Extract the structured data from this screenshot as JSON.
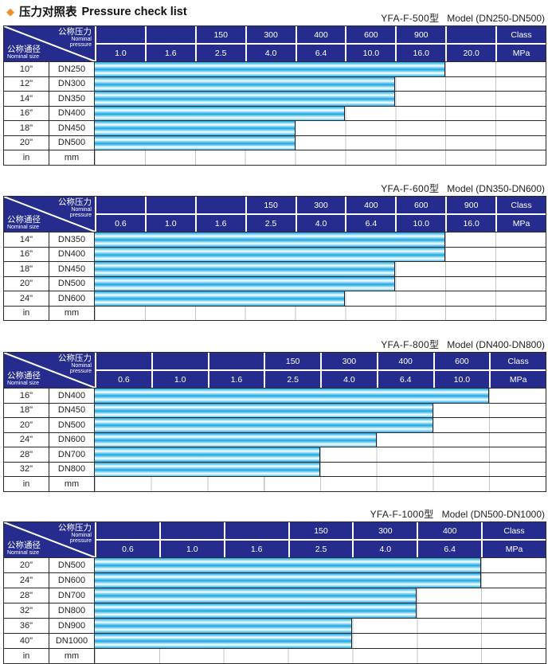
{
  "page": {
    "title_zh": "压力对照表",
    "title_en": "Pressure check list",
    "diamond_icon": "◆"
  },
  "corner": {
    "pressure_zh": "公称压力",
    "pressure_en_line1": "Nominal",
    "pressure_en_line2": "pressure",
    "size_zh": "公称通径",
    "size_en": "Nominal size"
  },
  "units": {
    "class_label": "Class",
    "mpa_label": "MPa",
    "inch_label": "in",
    "mm_label": "mm"
  },
  "colors": {
    "header_bg": "#262c8d",
    "bar_cyan": "#1ea7e0",
    "bar_highlight": "#ffffff",
    "diamond_orange": "#ef8f2a",
    "border_dark": "#2b2b2b"
  },
  "tables": [
    {
      "model": "YFA-F-500型",
      "model_range": "Model (DN250-DN500)",
      "class_row": [
        "",
        "",
        "150",
        "300",
        "400",
        "600",
        "900",
        ""
      ],
      "mpa_row": [
        "1.0",
        "1.6",
        "2.5",
        "4.0",
        "6.4",
        "10.0",
        "16.0",
        "20.0"
      ],
      "rows": [
        {
          "inch": "10\"",
          "dn": "DN250",
          "bar_span": 7,
          "max_mpa": "16.0"
        },
        {
          "inch": "12\"",
          "dn": "DN300",
          "bar_span": 6,
          "max_mpa": "10.0"
        },
        {
          "inch": "14\"",
          "dn": "DN350",
          "bar_span": 6,
          "max_mpa": "10.0"
        },
        {
          "inch": "16\"",
          "dn": "DN400",
          "bar_span": 5,
          "max_mpa": "6.4"
        },
        {
          "inch": "18\"",
          "dn": "DN450",
          "bar_span": 4,
          "max_mpa": "4.0"
        },
        {
          "inch": "20\"",
          "dn": "DN500",
          "bar_span": 4,
          "max_mpa": "4.0"
        }
      ]
    },
    {
      "model": "YFA-F-600型",
      "model_range": "Model (DN350-DN600)",
      "class_row": [
        "",
        "",
        "",
        "150",
        "300",
        "400",
        "600",
        "900"
      ],
      "mpa_row": [
        "0.6",
        "1.0",
        "1.6",
        "2.5",
        "4.0",
        "6.4",
        "10.0",
        "16.0"
      ],
      "rows": [
        {
          "inch": "14\"",
          "dn": "DN350",
          "bar_span": 7,
          "max_mpa": "10.0"
        },
        {
          "inch": "16\"",
          "dn": "DN400",
          "bar_span": 7,
          "max_mpa": "10.0"
        },
        {
          "inch": "18\"",
          "dn": "DN450",
          "bar_span": 6,
          "max_mpa": "6.4"
        },
        {
          "inch": "20\"",
          "dn": "DN500",
          "bar_span": 6,
          "max_mpa": "6.4"
        },
        {
          "inch": "24\"",
          "dn": "DN600",
          "bar_span": 5,
          "max_mpa": "4.0"
        }
      ]
    },
    {
      "model": "YFA-F-800型",
      "model_range": "Model (DN400-DN800)",
      "class_row": [
        "",
        "",
        "",
        "150",
        "300",
        "400",
        "600"
      ],
      "mpa_row": [
        "0.6",
        "1.0",
        "1.6",
        "2.5",
        "4.0",
        "6.4",
        "10.0"
      ],
      "rows": [
        {
          "inch": "16\"",
          "dn": "DN400",
          "bar_span": 7,
          "max_mpa": "10.0"
        },
        {
          "inch": "18\"",
          "dn": "DN450",
          "bar_span": 6,
          "max_mpa": "6.4"
        },
        {
          "inch": "20\"",
          "dn": "DN500",
          "bar_span": 6,
          "max_mpa": "6.4"
        },
        {
          "inch": "24\"",
          "dn": "DN600",
          "bar_span": 5,
          "max_mpa": "4.0"
        },
        {
          "inch": "28\"",
          "dn": "DN700",
          "bar_span": 4,
          "max_mpa": "2.5"
        },
        {
          "inch": "32\"",
          "dn": "DN800",
          "bar_span": 4,
          "max_mpa": "2.5"
        }
      ]
    },
    {
      "model": "YFA-F-1000型",
      "model_range": "Model (DN500-DN1000)",
      "class_row": [
        "",
        "",
        "",
        "150",
        "300",
        "400"
      ],
      "mpa_row": [
        "0.6",
        "1.0",
        "1.6",
        "2.5",
        "4.0",
        "6.4"
      ],
      "rows": [
        {
          "inch": "20\"",
          "dn": "DN500",
          "bar_span": 6,
          "max_mpa": "6.4"
        },
        {
          "inch": "24\"",
          "dn": "DN600",
          "bar_span": 6,
          "max_mpa": "6.4"
        },
        {
          "inch": "28\"",
          "dn": "DN700",
          "bar_span": 5,
          "max_mpa": "4.0"
        },
        {
          "inch": "32\"",
          "dn": "DN800",
          "bar_span": 5,
          "max_mpa": "4.0"
        },
        {
          "inch": "36\"",
          "dn": "DN900",
          "bar_span": 4,
          "max_mpa": "2.5"
        },
        {
          "inch": "40\"",
          "dn": "DN1000",
          "bar_span": 4,
          "max_mpa": "2.5"
        }
      ]
    }
  ]
}
